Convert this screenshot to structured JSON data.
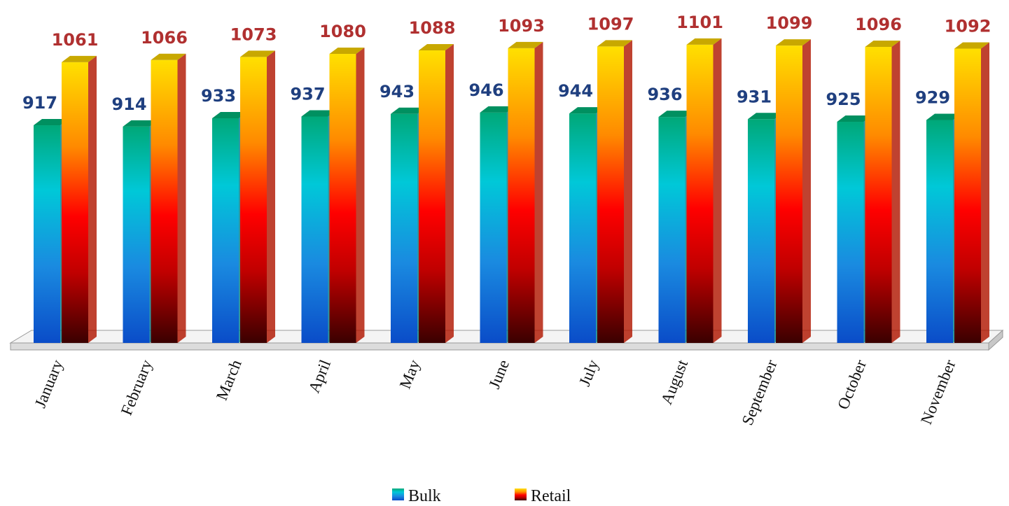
{
  "chart_data": {
    "type": "bar3d",
    "categories": [
      "January",
      "February",
      "March",
      "April",
      "May",
      "June",
      "July",
      "August",
      "September",
      "October",
      "November"
    ],
    "series": [
      {
        "name": "Bulk",
        "color": "#00b8c8",
        "label_color": "#1f3f7f",
        "values": [
          917,
          914,
          933,
          937,
          943,
          946,
          944,
          936,
          931,
          925,
          929
        ]
      },
      {
        "name": "Retail",
        "color": "#ff2000",
        "label_color": "#b03030",
        "values": [
          1061,
          1066,
          1073,
          1080,
          1088,
          1093,
          1097,
          1101,
          1099,
          1096,
          1092
        ]
      }
    ],
    "ylim": [
      420,
      1120
    ],
    "legend": "bottom"
  }
}
